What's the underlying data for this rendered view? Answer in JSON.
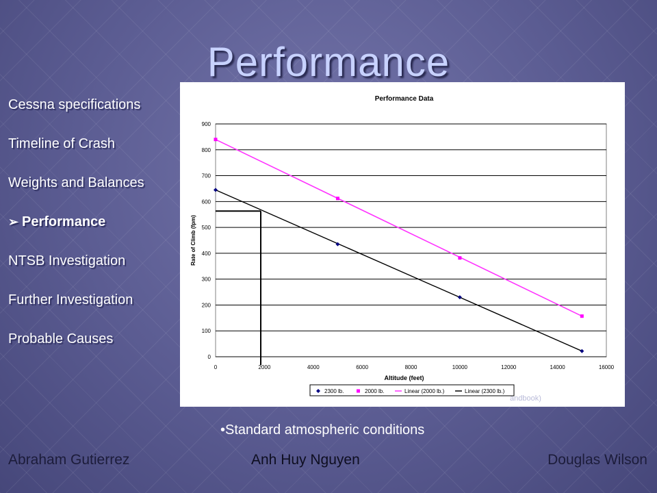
{
  "slide": {
    "title": "Performance",
    "caption": "•Standard atmospheric conditions"
  },
  "nav": {
    "items": [
      {
        "label": "Cessna specifications",
        "active": false
      },
      {
        "label": "Timeline of Crash",
        "active": false
      },
      {
        "label": "Weights and Balances",
        "active": false
      },
      {
        "label": "Performance",
        "active": true
      },
      {
        "label": "NTSB Investigation",
        "active": false
      },
      {
        "label": "Further Investigation",
        "active": false
      },
      {
        "label": "Probable Causes",
        "active": false
      }
    ],
    "active_marker_icon": "arrow-bullet-icon"
  },
  "footer": {
    "left": "Abraham Gutierrez",
    "center": "Anh Huy Nguyen",
    "right": "Douglas Wilson"
  },
  "source_note": "andbook)",
  "colors": {
    "series_2300": "#000080",
    "series_2000": "#ff00ff",
    "linear_2000": "#ff33ff",
    "linear_2300": "#000000"
  },
  "chart_data": {
    "type": "line",
    "title": "Performance Data",
    "xlabel": "Altitude (feet)",
    "ylabel": "Rate of Climb (fpm)",
    "xlim": [
      0,
      16000
    ],
    "ylim": [
      0,
      900
    ],
    "xticks": [
      0,
      2000,
      4000,
      6000,
      8000,
      10000,
      12000,
      14000,
      16000
    ],
    "yticks": [
      0,
      100,
      200,
      300,
      400,
      500,
      600,
      700,
      800,
      900
    ],
    "grid": true,
    "legend_position": "bottom",
    "series": [
      {
        "name": "2300 lb.",
        "type": "scatter",
        "x": [
          0,
          5000,
          10000,
          15000
        ],
        "y": [
          645,
          435,
          230,
          22
        ]
      },
      {
        "name": "2000 lb.",
        "type": "scatter",
        "x": [
          0,
          5000,
          10000,
          15000
        ],
        "y": [
          840,
          612,
          382,
          157
        ]
      },
      {
        "name": "Linear (2000 lb.)",
        "type": "line",
        "x": [
          0,
          15000
        ],
        "y": [
          840,
          157
        ]
      },
      {
        "name": "Linear (2300 lb.)",
        "type": "line",
        "x": [
          0,
          15000
        ],
        "y": [
          645,
          22
        ]
      }
    ],
    "annotation": {
      "type": "reference-lines",
      "x": 1850,
      "y": 563
    }
  }
}
